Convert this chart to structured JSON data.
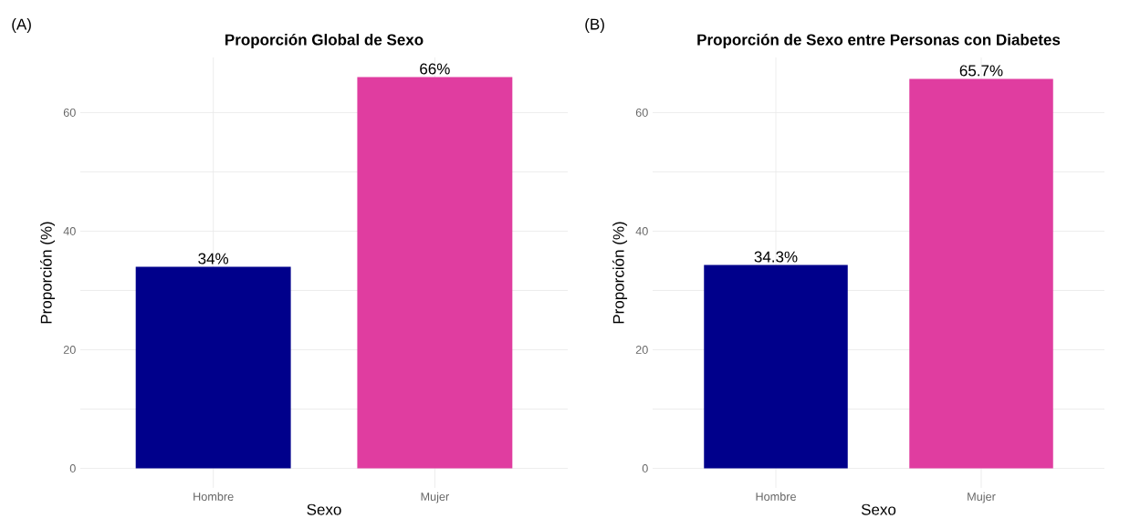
{
  "chart_data": [
    {
      "type": "bar",
      "title": "Proporción Global de Sexo",
      "xlabel": "Sexo",
      "ylabel": "Proporción (%)",
      "categories": [
        "Hombre",
        "Mujer"
      ],
      "values": [
        34,
        66
      ],
      "colors": [
        "#00008b",
        "#e03da0"
      ],
      "value_labels": [
        "34%",
        "66%"
      ],
      "ylim": [
        -3.3,
        69.3
      ],
      "yticks": [
        0,
        {
          "value": 10,
          "label": null
        },
        20,
        {
          "value": 30,
          "label": null
        },
        40,
        {
          "value": 50,
          "label": null
        },
        60
      ],
      "grid": true,
      "annotations": [
        "(A)"
      ]
    },
    {
      "type": "bar",
      "title": "Proporción de Sexo entre Personas con Diabetes",
      "xlabel": "Sexo",
      "ylabel": "Proporción (%)",
      "categories": [
        "Hombre",
        "Mujer"
      ],
      "values": [
        34.3,
        65.7
      ],
      "colors": [
        "#00008b",
        "#e03da0"
      ],
      "value_labels": [
        "34.3%",
        "65.7%"
      ],
      "ylim": [
        -3.3,
        69.3
      ],
      "yticks": [
        0,
        {
          "value": 10,
          "label": null
        },
        20,
        {
          "value": 30,
          "label": null
        },
        40,
        {
          "value": 50,
          "label": null
        },
        60
      ],
      "grid": true,
      "annotations": [
        "(B)"
      ]
    }
  ]
}
